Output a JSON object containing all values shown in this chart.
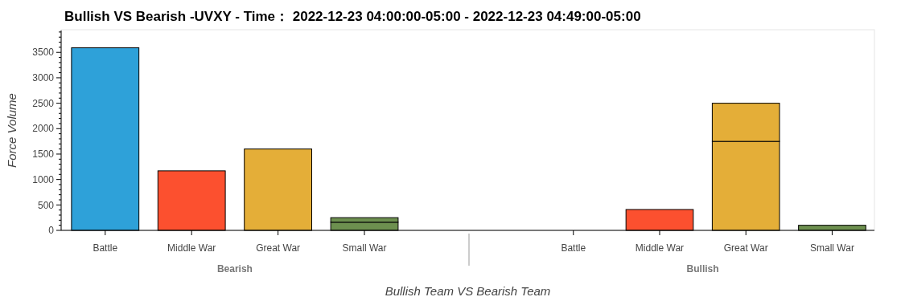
{
  "chart_data": [
    {
      "type": "bar",
      "title": "Bullish VS Bearish -UVXY - Time： 2022-12-23 04:00:00-05:00 - 2022-12-23 04:49:00-05:00",
      "ylabel": "Force Volume",
      "xlabel": "Bearish",
      "annotations": [
        "Bullish Team VS Bearish Team"
      ],
      "categories": [
        "Battle",
        "Middle War",
        "Great War",
        "Small War"
      ],
      "stacked": true,
      "series": [
        {
          "colors": [
            "#2ea1d9",
            "#fc502f",
            "#e4ae38",
            "#6d904f"
          ],
          "values": [
            3590,
            1170,
            1600,
            160
          ]
        },
        {
          "colors": [
            null,
            null,
            null,
            "#6d904f"
          ],
          "values": [
            null,
            null,
            null,
            90
          ]
        }
      ],
      "ylim": [
        0,
        3930
      ],
      "yticks": [
        0,
        500,
        1000,
        1500,
        2000,
        2500,
        3000,
        3500
      ],
      "grid": false
    },
    {
      "type": "bar",
      "xlabel": "Bullish",
      "categories": [
        "Battle",
        "Middle War",
        "Great War",
        "Small War"
      ],
      "stacked": true,
      "series": [
        {
          "colors": [
            "#2ea1d9",
            "#fc502f",
            "#e4ae38",
            "#6d904f"
          ],
          "values": [
            0,
            410,
            1750,
            100
          ]
        },
        {
          "colors": [
            null,
            null,
            "#e4ae38",
            null
          ],
          "values": [
            null,
            null,
            750,
            null
          ]
        }
      ],
      "ylim": [
        0,
        3930
      ],
      "yticks": [
        0,
        500,
        1000,
        1500,
        2000,
        2500,
        3000,
        3500
      ],
      "tick_labels": "x",
      "grid": false
    }
  ]
}
